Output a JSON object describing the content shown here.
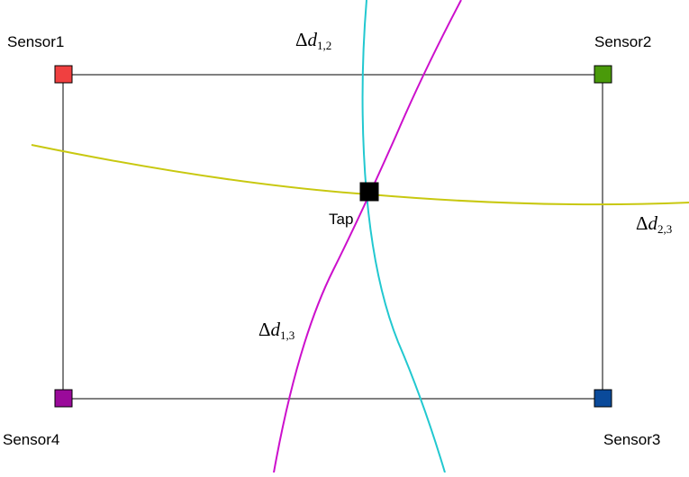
{
  "sensors": [
    {
      "label": "Sensor1",
      "color": "#f04040"
    },
    {
      "label": "Sensor2",
      "color": "#4a9a0a"
    },
    {
      "label": "Sensor3",
      "color": "#0a4a9a"
    },
    {
      "label": "Sensor4",
      "color": "#9a0a9a"
    }
  ],
  "tap": {
    "label": "Tap",
    "color": "#000000"
  },
  "curves": [
    {
      "symbol": "Δ",
      "var": "d",
      "sub": "1,2",
      "color": "#22c8d0"
    },
    {
      "symbol": "Δ",
      "var": "d",
      "sub": "1,3",
      "color": "#cc10cc"
    },
    {
      "symbol": "Δ",
      "var": "d",
      "sub": "2,3",
      "color": "#c8c810"
    }
  ]
}
